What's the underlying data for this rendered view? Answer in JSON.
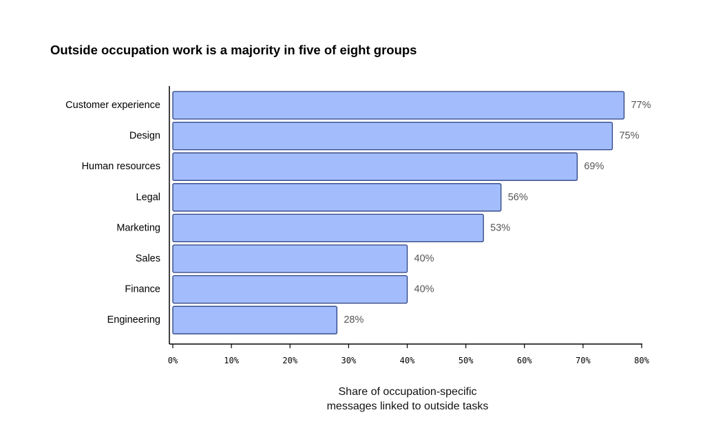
{
  "chart_data": {
    "type": "bar",
    "orientation": "horizontal",
    "title": "Outside occupation work is a majority in five of eight groups",
    "categories": [
      "Customer experience",
      "Design",
      "Human resources",
      "Legal",
      "Marketing",
      "Sales",
      "Finance",
      "Engineering"
    ],
    "values": [
      77,
      75,
      69,
      56,
      53,
      40,
      40,
      28
    ],
    "value_labels": [
      "77%",
      "75%",
      "69%",
      "56%",
      "53%",
      "40%",
      "40%",
      "28%"
    ],
    "xlabel_lines": [
      "Share of occupation-specific",
      "messages linked to outside tasks"
    ],
    "ylabel": "",
    "xlim": [
      0,
      80
    ],
    "x_ticks": [
      0,
      10,
      20,
      30,
      40,
      50,
      60,
      70,
      80
    ],
    "x_tick_labels": [
      "0%",
      "10%",
      "20%",
      "30%",
      "40%",
      "50%",
      "60%",
      "70%",
      "80%"
    ],
    "grid": false,
    "colors": {
      "bar_fill": "#a3bdfc",
      "bar_stroke": "#2b3f80",
      "axis": "#000000",
      "value_label": "#555555"
    }
  }
}
